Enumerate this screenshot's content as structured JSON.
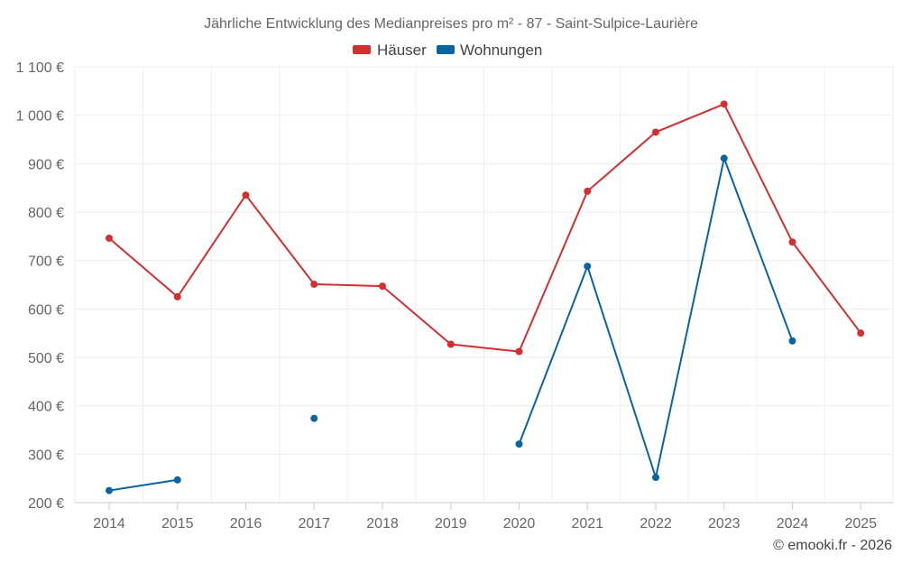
{
  "chart_data": {
    "type": "line",
    "title": "Jährliche Entwicklung des Medianpreises pro m² - 87 - Saint-Sulpice-Laurière",
    "x": [
      "2014",
      "2015",
      "2016",
      "2017",
      "2018",
      "2019",
      "2020",
      "2021",
      "2022",
      "2023",
      "2024",
      "2025"
    ],
    "y_ticks": [
      "200 €",
      "300 €",
      "400 €",
      "500 €",
      "600 €",
      "700 €",
      "800 €",
      "900 €",
      "1 000 €",
      "1 100 €"
    ],
    "ylim": [
      200,
      1100
    ],
    "grid": true,
    "legend_position": "top-center",
    "series": [
      {
        "name": "Häuser",
        "color": "#d32f2f",
        "values": [
          746,
          625,
          835,
          651,
          647,
          527,
          512,
          843,
          965,
          1023,
          738,
          550
        ]
      },
      {
        "name": "Wohnungen",
        "color": "#0a64a0",
        "values": [
          225,
          247,
          null,
          374,
          null,
          null,
          321,
          688,
          252,
          911,
          534,
          null
        ]
      }
    ],
    "credit": "© emooki.fr - 2026"
  }
}
